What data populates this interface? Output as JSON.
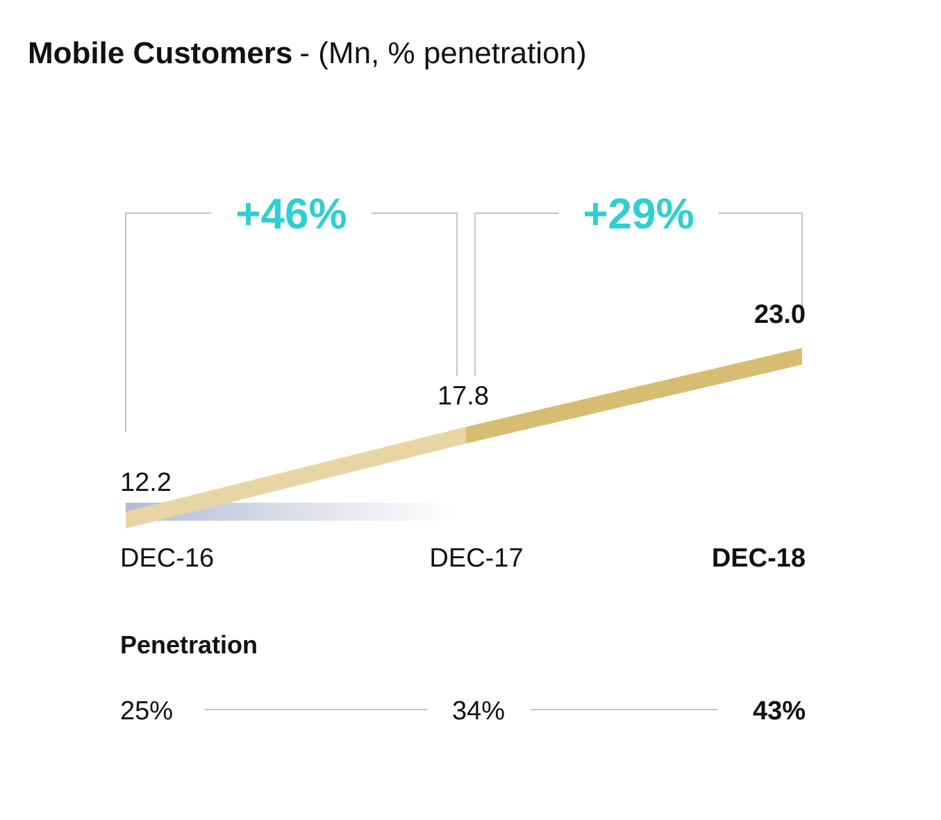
{
  "title": {
    "main": "Mobile Customers",
    "sub": "- (Mn, % penetration)"
  },
  "colors": {
    "line_light": "#e7d6a3",
    "line_dark": "#d7bd72",
    "growth": "#2fcfcf",
    "bracket": "#c4c4c4",
    "shade": "#c5cbe0",
    "text": "#111111"
  },
  "chart_data": {
    "type": "line",
    "title": "Mobile Customers",
    "categories": [
      "DEC-16",
      "DEC-17",
      "DEC-18"
    ],
    "series": [
      {
        "values": [
          12.2,
          17.8,
          23.0
        ]
      }
    ],
    "value_labels": [
      "12.2",
      "17.8",
      "23.0"
    ],
    "ylabel": "",
    "xlabel": "",
    "ylim": [
      11.7,
      23.6
    ],
    "grid": false,
    "growth": [
      {
        "from": "DEC-16",
        "to": "DEC-17",
        "label": "+46%"
      },
      {
        "from": "DEC-17",
        "to": "DEC-18",
        "label": "+29%"
      }
    ],
    "penetration": {
      "label": "Penetration",
      "values": [
        "25%",
        "34%",
        "43%"
      ]
    }
  }
}
